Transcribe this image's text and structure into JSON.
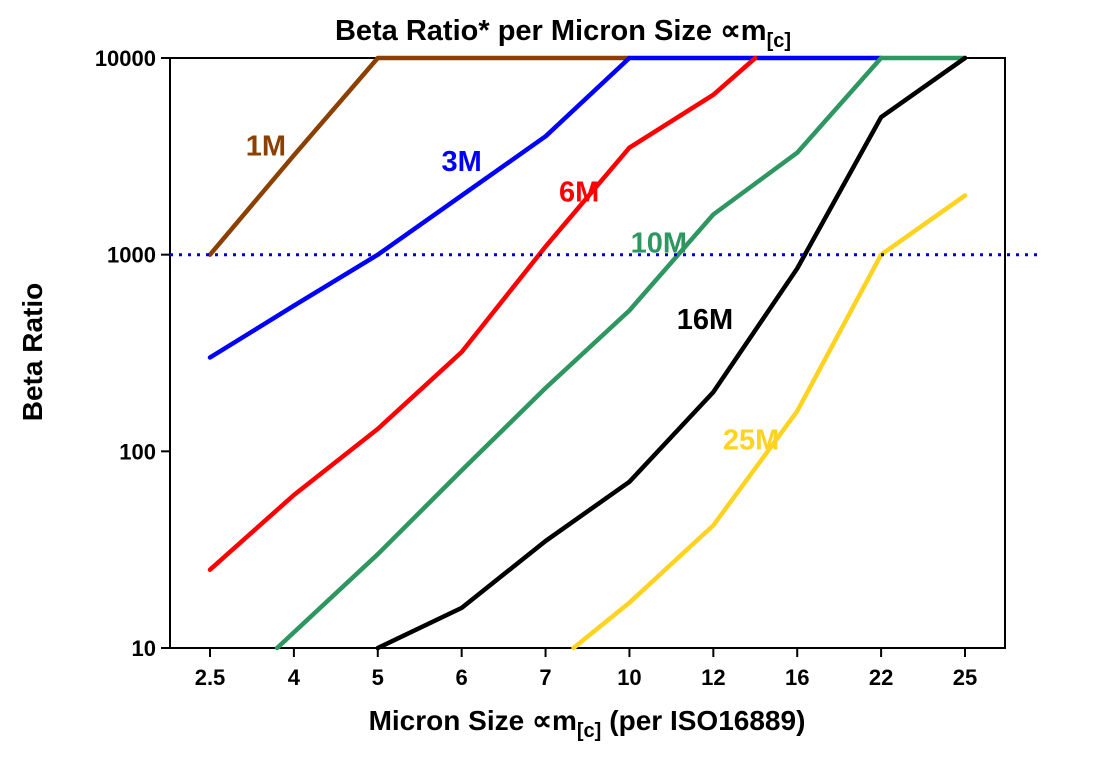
{
  "title": {
    "main": "Beta Ratio* per Micron Size ∝m",
    "sub": "[c]"
  },
  "ylabel": "Beta Ratio",
  "xlabel": {
    "part1": "Micron Size ∝m",
    "sub": "[c]",
    "part2": "(per ISO16889)"
  },
  "chart_data": {
    "type": "line",
    "title": "Beta Ratio* per Micron Size ∝m[c]",
    "xlabel": "Micron Size ∝m[c] (per ISO16889)",
    "ylabel": "Beta Ratio",
    "x_scale": "categorical",
    "x_categories": [
      2.5,
      4,
      5,
      6,
      7,
      10,
      12,
      16,
      22,
      25
    ],
    "y_scale": "log",
    "ylim": [
      10,
      10000
    ],
    "y_ticks": [
      10,
      100,
      1000,
      10000
    ],
    "grid": false,
    "legend": "inline-labels",
    "reference_line": {
      "y": 1000,
      "style": "dotted",
      "color": "#0000CC"
    },
    "series": [
      {
        "name": "1M",
        "color": "#8B4000",
        "points": [
          [
            2.5,
            1000
          ],
          [
            4,
            3200
          ],
          [
            5,
            10000
          ],
          [
            10,
            10000
          ]
        ],
        "label_at": [
          3.5,
          3600
        ]
      },
      {
        "name": "3M",
        "color": "#0000FF",
        "points": [
          [
            2.5,
            300
          ],
          [
            4,
            550
          ],
          [
            5,
            1000
          ],
          [
            6,
            2000
          ],
          [
            7,
            4000
          ],
          [
            10,
            10000
          ],
          [
            22,
            10000
          ]
        ],
        "label_at": [
          6,
          3000
        ]
      },
      {
        "name": "6M",
        "color": "#FF0000",
        "points": [
          [
            2.5,
            25
          ],
          [
            4,
            60
          ],
          [
            5,
            130
          ],
          [
            6,
            320
          ],
          [
            7,
            1100
          ],
          [
            10,
            3500
          ],
          [
            12,
            6500
          ],
          [
            14,
            10000
          ]
        ],
        "label_at": [
          8.2,
          2100
        ]
      },
      {
        "name": "10M",
        "color": "#2E9660",
        "points": [
          [
            3.7,
            10
          ],
          [
            5,
            30
          ],
          [
            6,
            80
          ],
          [
            7,
            210
          ],
          [
            10,
            520
          ],
          [
            12,
            1600
          ],
          [
            16,
            3300
          ],
          [
            22,
            10000
          ],
          [
            25,
            10000
          ]
        ],
        "label_at": [
          10.7,
          1150
        ]
      },
      {
        "name": "16M",
        "color": "#000000",
        "points": [
          [
            5,
            10
          ],
          [
            6,
            16
          ],
          [
            7,
            35
          ],
          [
            10,
            70
          ],
          [
            12,
            200
          ],
          [
            16,
            850
          ],
          [
            22,
            5000
          ],
          [
            25,
            10000
          ]
        ],
        "label_at": [
          11.8,
          470
        ]
      },
      {
        "name": "25M",
        "color": "#FFD320",
        "points": [
          [
            8,
            10
          ],
          [
            10,
            17
          ],
          [
            12,
            42
          ],
          [
            16,
            160
          ],
          [
            22,
            1000
          ],
          [
            25,
            2000
          ]
        ],
        "label_at": [
          13.8,
          115
        ]
      }
    ]
  }
}
